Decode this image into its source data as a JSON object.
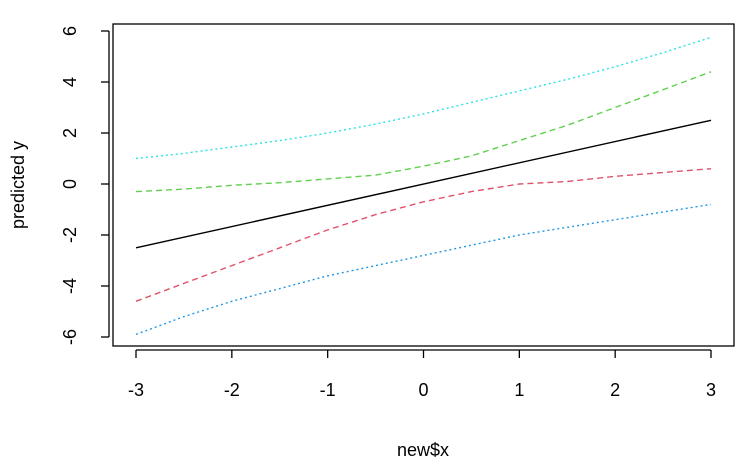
{
  "chart_data": {
    "type": "line",
    "title": "",
    "xlabel": "new$x",
    "ylabel": "predicted y",
    "xlim": [
      -3.0,
      3.0
    ],
    "ylim": [
      -6.0,
      6.0
    ],
    "x_ticks": [
      -3,
      -2,
      -1,
      0,
      1,
      2,
      3
    ],
    "y_ticks": [
      -6,
      -4,
      -2,
      0,
      2,
      4,
      6
    ],
    "x_tick_labels": [
      "-3",
      "-2",
      "-1",
      "0",
      "1",
      "2",
      "3"
    ],
    "y_tick_labels": [
      "-6",
      "-4",
      "-2",
      "0",
      "2",
      "4",
      "6"
    ],
    "grid": false,
    "legend": "none",
    "series": [
      {
        "color": "#000000",
        "dash": "solid",
        "points": [
          [
            -3,
            -2.5
          ],
          [
            3,
            2.5
          ]
        ]
      },
      {
        "color": "#df536b",
        "dash": "dashed",
        "points": [
          [
            -3,
            -4.6
          ],
          [
            -2.5,
            -3.9
          ],
          [
            -2,
            -3.2
          ],
          [
            -1.5,
            -2.5
          ],
          [
            -1,
            -1.8
          ],
          [
            -0.5,
            -1.2
          ],
          [
            0,
            -0.7
          ],
          [
            0.5,
            -0.3
          ],
          [
            1,
            0.0
          ],
          [
            1.5,
            0.1
          ],
          [
            2,
            0.3
          ],
          [
            2.5,
            0.45
          ],
          [
            3,
            0.6
          ]
        ]
      },
      {
        "color": "#61d04f",
        "dash": "dashed",
        "points": [
          [
            -3,
            -0.3
          ],
          [
            -2.5,
            -0.2
          ],
          [
            -2,
            -0.05
          ],
          [
            -1.5,
            0.05
          ],
          [
            -1,
            0.2
          ],
          [
            -0.5,
            0.35
          ],
          [
            0,
            0.7
          ],
          [
            0.5,
            1.1
          ],
          [
            1,
            1.7
          ],
          [
            1.5,
            2.3
          ],
          [
            2,
            3.0
          ],
          [
            2.5,
            3.7
          ],
          [
            3,
            4.4
          ]
        ]
      },
      {
        "color": "#2297e6",
        "dash": "dotted",
        "points": [
          [
            -3,
            -5.9
          ],
          [
            -2.5,
            -5.2
          ],
          [
            -2,
            -4.6
          ],
          [
            -1.5,
            -4.1
          ],
          [
            -1,
            -3.6
          ],
          [
            -0.5,
            -3.2
          ],
          [
            0,
            -2.8
          ],
          [
            0.5,
            -2.4
          ],
          [
            1,
            -2.0
          ],
          [
            1.5,
            -1.7
          ],
          [
            2,
            -1.4
          ],
          [
            2.5,
            -1.1
          ],
          [
            3,
            -0.8
          ]
        ]
      },
      {
        "color": "#28e2e5",
        "dash": "dotted",
        "points": [
          [
            -3,
            1.0
          ],
          [
            -2.5,
            1.2
          ],
          [
            -2,
            1.45
          ],
          [
            -1.5,
            1.7
          ],
          [
            -1,
            2.0
          ],
          [
            -0.5,
            2.35
          ],
          [
            0,
            2.75
          ],
          [
            0.5,
            3.2
          ],
          [
            1,
            3.65
          ],
          [
            1.5,
            4.1
          ],
          [
            2,
            4.6
          ],
          [
            2.5,
            5.15
          ],
          [
            3,
            5.75
          ]
        ]
      }
    ]
  }
}
